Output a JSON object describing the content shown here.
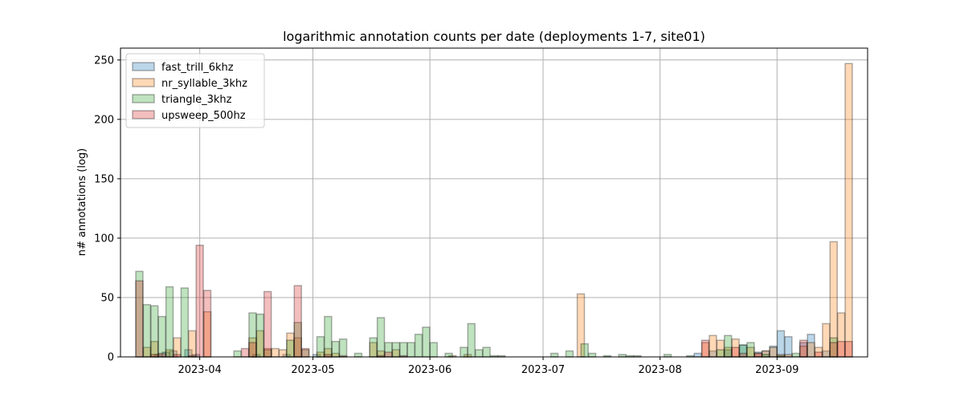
{
  "chart_data": {
    "type": "bar",
    "title": "logarithmic annotation counts per date (deployments 1-7, site01)",
    "xlabel": "",
    "ylabel": "n# annotations (log)",
    "ylim": [
      0,
      260
    ],
    "xlim": [
      "2023-03-11",
      "2023-09-25"
    ],
    "yticks": [
      0,
      50,
      100,
      150,
      200,
      250
    ],
    "xticks": [
      "2023-04-01",
      "2023-05-01",
      "2023-06-01",
      "2023-07-01",
      "2023-08-01",
      "2023-09-01"
    ],
    "xtick_labels": [
      "2023-04",
      "2023-05",
      "2023-06",
      "2023-07",
      "2023-08",
      "2023-09"
    ],
    "grid": true,
    "legend_position": "top-left",
    "bin_width_days": 1.9,
    "colors": {
      "fast_trill_6khz": "#1f77b4",
      "nr_syllable_3khz": "#ff7f0e",
      "triangle_3khz": "#2ca02c",
      "upsweep_500hz": "#d62728"
    },
    "series": [
      {
        "name": "fast_trill_6khz",
        "points": [
          [
            "2023-03-21",
            2
          ],
          [
            "2023-03-23",
            4
          ],
          [
            "2023-03-25",
            5
          ],
          [
            "2023-03-29",
            6
          ],
          [
            "2023-03-31",
            2
          ],
          [
            "2023-04-16",
            2
          ],
          [
            "2023-04-24",
            2
          ],
          [
            "2023-05-02",
            2
          ],
          [
            "2023-08-11",
            3
          ],
          [
            "2023-08-15",
            5
          ],
          [
            "2023-08-19",
            6
          ],
          [
            "2023-08-23",
            10
          ],
          [
            "2023-08-27",
            4
          ],
          [
            "2023-08-29",
            5
          ],
          [
            "2023-08-31",
            9
          ],
          [
            "2023-09-02",
            22
          ],
          [
            "2023-09-04",
            17
          ],
          [
            "2023-09-08",
            12
          ],
          [
            "2023-09-10",
            19
          ],
          [
            "2023-09-14",
            5
          ]
        ]
      },
      {
        "name": "nr_syllable_3khz",
        "points": [
          [
            "2023-03-18",
            8
          ],
          [
            "2023-03-20",
            13
          ],
          [
            "2023-03-24",
            6
          ],
          [
            "2023-03-26",
            16
          ],
          [
            "2023-03-30",
            22
          ],
          [
            "2023-04-03",
            38
          ],
          [
            "2023-04-15",
            16
          ],
          [
            "2023-04-17",
            22
          ],
          [
            "2023-04-19",
            7
          ],
          [
            "2023-04-21",
            7
          ],
          [
            "2023-04-23",
            6
          ],
          [
            "2023-04-25",
            20
          ],
          [
            "2023-04-27",
            16
          ],
          [
            "2023-05-03",
            4
          ],
          [
            "2023-05-05",
            7
          ],
          [
            "2023-05-07",
            3
          ],
          [
            "2023-05-17",
            12
          ],
          [
            "2023-05-19",
            5
          ],
          [
            "2023-05-23",
            6
          ],
          [
            "2023-06-07",
            1
          ],
          [
            "2023-06-11",
            2
          ],
          [
            "2023-07-11",
            53
          ],
          [
            "2023-08-13",
            12
          ],
          [
            "2023-08-15",
            18
          ],
          [
            "2023-08-17",
            14
          ],
          [
            "2023-08-19",
            8
          ],
          [
            "2023-08-21",
            15
          ],
          [
            "2023-08-25",
            8
          ],
          [
            "2023-08-27",
            3
          ],
          [
            "2023-08-29",
            5
          ],
          [
            "2023-08-31",
            8
          ],
          [
            "2023-09-02",
            2
          ],
          [
            "2023-09-04",
            2
          ],
          [
            "2023-09-08",
            9
          ],
          [
            "2023-09-10",
            12
          ],
          [
            "2023-09-12",
            8
          ],
          [
            "2023-09-14",
            28
          ],
          [
            "2023-09-16",
            97
          ],
          [
            "2023-09-18",
            37
          ],
          [
            "2023-09-20",
            247
          ]
        ]
      },
      {
        "name": "triangle_3khz",
        "points": [
          [
            "2023-03-16",
            72
          ],
          [
            "2023-03-18",
            44
          ],
          [
            "2023-03-20",
            43
          ],
          [
            "2023-03-22",
            34
          ],
          [
            "2023-03-24",
            59
          ],
          [
            "2023-03-28",
            58
          ],
          [
            "2023-04-11",
            5
          ],
          [
            "2023-04-15",
            37
          ],
          [
            "2023-04-17",
            36
          ],
          [
            "2023-04-19",
            6
          ],
          [
            "2023-04-25",
            14
          ],
          [
            "2023-04-27",
            29
          ],
          [
            "2023-04-29",
            6
          ],
          [
            "2023-05-03",
            17
          ],
          [
            "2023-05-05",
            34
          ],
          [
            "2023-05-07",
            13
          ],
          [
            "2023-05-09",
            15
          ],
          [
            "2023-05-13",
            3
          ],
          [
            "2023-05-17",
            16
          ],
          [
            "2023-05-19",
            33
          ],
          [
            "2023-05-21",
            12
          ],
          [
            "2023-05-23",
            12
          ],
          [
            "2023-05-25",
            12
          ],
          [
            "2023-05-27",
            12
          ],
          [
            "2023-05-29",
            19
          ],
          [
            "2023-05-31",
            25
          ],
          [
            "2023-06-02",
            12
          ],
          [
            "2023-06-06",
            3
          ],
          [
            "2023-06-10",
            8
          ],
          [
            "2023-06-12",
            28
          ],
          [
            "2023-06-14",
            6
          ],
          [
            "2023-06-16",
            8
          ],
          [
            "2023-06-18",
            1
          ],
          [
            "2023-06-20",
            1
          ],
          [
            "2023-07-04",
            3
          ],
          [
            "2023-07-08",
            5
          ],
          [
            "2023-07-12",
            11
          ],
          [
            "2023-07-14",
            3
          ],
          [
            "2023-07-18",
            1
          ],
          [
            "2023-07-22",
            2
          ],
          [
            "2023-07-24",
            1
          ],
          [
            "2023-07-26",
            1
          ],
          [
            "2023-08-03",
            2
          ],
          [
            "2023-08-09",
            1
          ],
          [
            "2023-08-17",
            6
          ],
          [
            "2023-08-19",
            18
          ],
          [
            "2023-08-23",
            10
          ],
          [
            "2023-08-25",
            12
          ],
          [
            "2023-08-29",
            2
          ],
          [
            "2023-09-02",
            1
          ],
          [
            "2023-09-06",
            3
          ],
          [
            "2023-09-16",
            16
          ]
        ]
      },
      {
        "name": "upsweep_500hz",
        "points": [
          [
            "2023-03-16",
            64
          ],
          [
            "2023-03-20",
            2
          ],
          [
            "2023-03-22",
            3
          ],
          [
            "2023-03-26",
            2
          ],
          [
            "2023-03-30",
            1
          ],
          [
            "2023-04-01",
            94
          ],
          [
            "2023-04-03",
            56
          ],
          [
            "2023-04-13",
            7
          ],
          [
            "2023-04-15",
            12
          ],
          [
            "2023-04-19",
            55
          ],
          [
            "2023-04-27",
            60
          ],
          [
            "2023-04-29",
            7
          ],
          [
            "2023-05-05",
            2
          ],
          [
            "2023-05-09",
            1
          ],
          [
            "2023-05-19",
            1
          ],
          [
            "2023-05-21",
            4
          ],
          [
            "2023-05-25",
            1
          ],
          [
            "2023-08-13",
            14
          ],
          [
            "2023-08-21",
            8
          ],
          [
            "2023-08-23",
            3
          ],
          [
            "2023-08-27",
            3
          ],
          [
            "2023-09-08",
            14
          ],
          [
            "2023-09-12",
            4
          ],
          [
            "2023-09-16",
            12
          ],
          [
            "2023-09-18",
            13
          ],
          [
            "2023-09-20",
            13
          ]
        ]
      }
    ]
  }
}
